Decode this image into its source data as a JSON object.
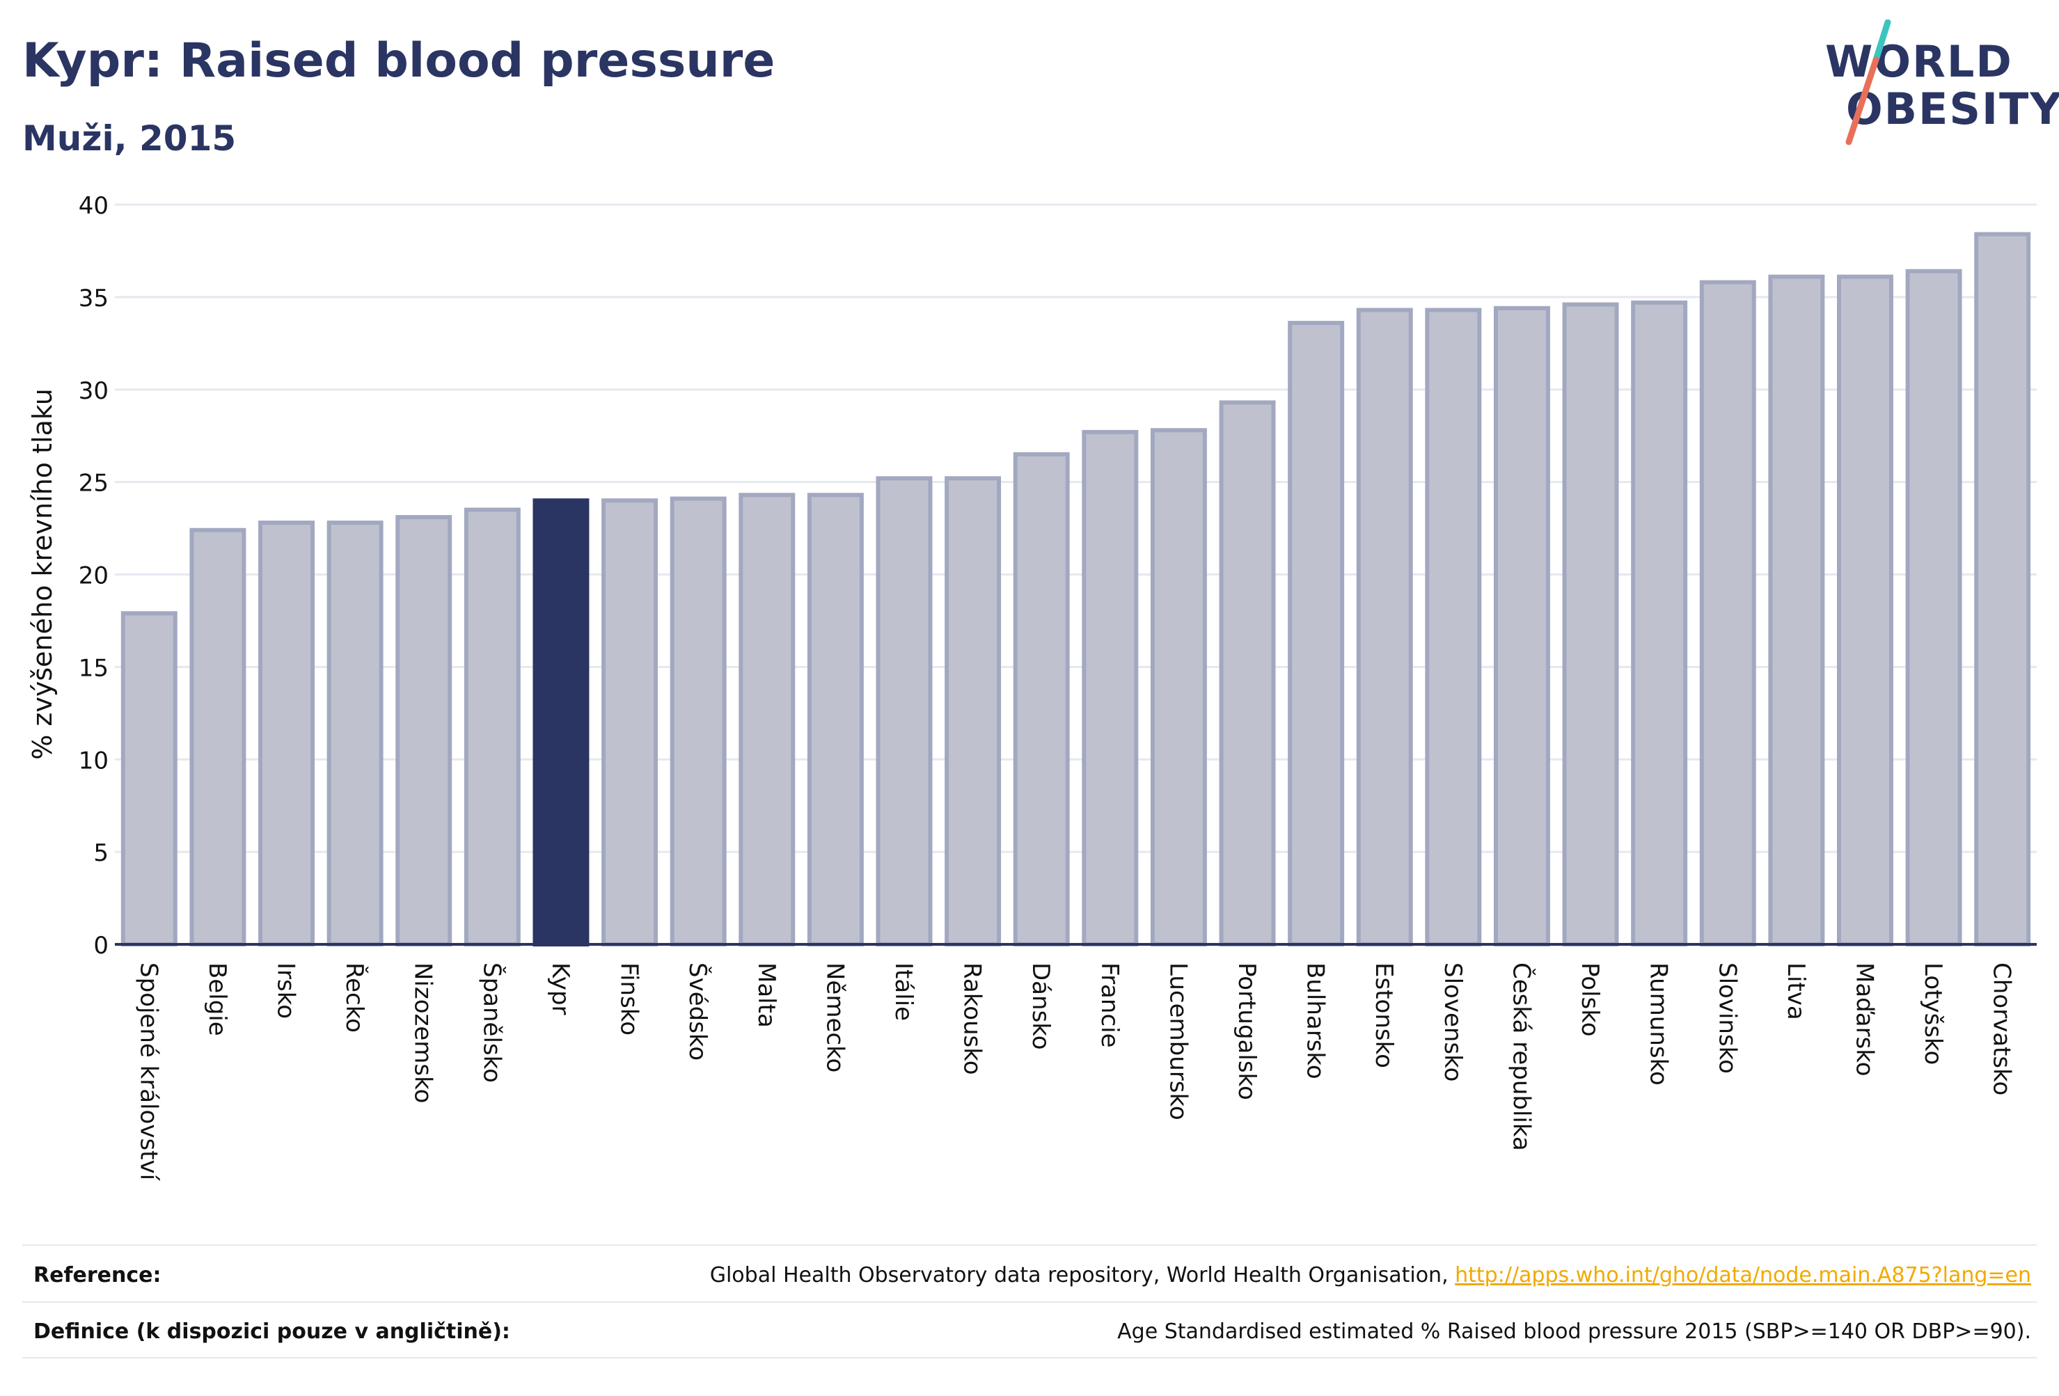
{
  "header": {
    "title": "Kypr: Raised blood pressure",
    "subtitle": "Muži, 2015"
  },
  "logo": {
    "line1": "WORLD",
    "line2": "OBESITY"
  },
  "chart_data": {
    "type": "bar",
    "ylabel": "% zvýšeného krevního tlaku",
    "ylim": [
      0,
      40
    ],
    "yticks": [
      0,
      5,
      10,
      15,
      20,
      25,
      30,
      35,
      40
    ],
    "grid": true,
    "highlight": "Kypr",
    "colors": {
      "bar": "#bfc2ce",
      "bar_border": "#a2a8c0",
      "highlight": "#2b3563",
      "grid": "#e6e8f0",
      "axis": "#2b3563"
    },
    "categories": [
      "Spojené království",
      "Belgie",
      "Irsko",
      "Řecko",
      "Nizozemsko",
      "Španělsko",
      "Kypr",
      "Finsko",
      "Švédsko",
      "Malta",
      "Německo",
      "Itálie",
      "Rakousko",
      "Dánsko",
      "Francie",
      "Lucembursko",
      "Portugalsko",
      "Bulharsko",
      "Estonsko",
      "Slovensko",
      "Česká republika",
      "Polsko",
      "Rumunsko",
      "Slovinsko",
      "Litva",
      "Maďarsko",
      "Lotyšsko",
      "Chorvatsko"
    ],
    "values": [
      17.9,
      22.4,
      22.8,
      22.8,
      23.1,
      23.5,
      24.0,
      24.0,
      24.1,
      24.3,
      24.3,
      25.2,
      25.2,
      26.5,
      27.7,
      27.8,
      29.3,
      33.6,
      34.3,
      34.3,
      34.4,
      34.6,
      34.7,
      35.8,
      36.1,
      36.1,
      36.4,
      38.4
    ]
  },
  "footer": {
    "reference_label": "Reference:",
    "reference_text": "Global Health Observatory data repository, World Health Organisation, ",
    "reference_link": "http://apps.who.int/gho/data/node.main.A875?lang=en",
    "definition_label": "Definice (k dispozici pouze v angličtině):",
    "definition_text": "Age Standardised estimated % Raised blood pressure 2015 (SBP>=140 OR DBP>=90)."
  }
}
